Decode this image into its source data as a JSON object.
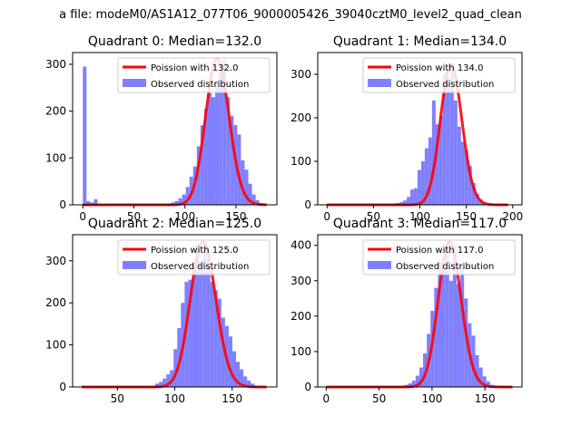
{
  "figure": {
    "title": "a file: modeM0/AS1A12_077T06_9000005426_39040cztM0_level2_quad_clean"
  },
  "colors": {
    "fit_line": "#ff0000",
    "hist_fill": "#8080ff",
    "legend_border": "#cccccc"
  },
  "chart_data": [
    {
      "type": "bar",
      "title": "Quadrant 0: Median=132.0",
      "xlim": [
        -10,
        190
      ],
      "ylim": [
        0,
        325
      ],
      "xticks": [
        0,
        50,
        100,
        150
      ],
      "yticks": [
        0,
        100,
        200,
        300
      ],
      "legend_position": "upper right",
      "fit": {
        "label": "Poission with 132.0",
        "mean": 132.0,
        "x_range": [
          0,
          180
        ],
        "peak": 312
      },
      "hist": {
        "label": "Observed distribution",
        "bin_edges": [
          0,
          3.6,
          7.2,
          10.8,
          14.4,
          18,
          21.6,
          25.2,
          28.8,
          32.4,
          36,
          39.6,
          43.2,
          46.8,
          50.4,
          54,
          57.6,
          61.2,
          64.8,
          68.4,
          72,
          75.6,
          79.2,
          82.8,
          86.4,
          90,
          93.6,
          97.2,
          100.8,
          104.4,
          108,
          111.6,
          115.2,
          118.8,
          122.4,
          126,
          129.6,
          133.2,
          136.8,
          140.4,
          144,
          147.6,
          151.2,
          154.8,
          158.4,
          162,
          165.6,
          169.2,
          172.8,
          176.4,
          180
        ],
        "counts": [
          295,
          8,
          5,
          12,
          2,
          1,
          0,
          1,
          0,
          1,
          0,
          1,
          0,
          0,
          0,
          0,
          0,
          0,
          0,
          0,
          2,
          0,
          1,
          3,
          5,
          8,
          14,
          22,
          38,
          60,
          82,
          125,
          170,
          205,
          240,
          230,
          265,
          285,
          310,
          230,
          190,
          170,
          150,
          95,
          75,
          45,
          22,
          10,
          4,
          2
        ]
      }
    },
    {
      "type": "bar",
      "title": "Quadrant 1: Median=134.0",
      "xlim": [
        -10,
        210
      ],
      "ylim": [
        0,
        350
      ],
      "xticks": [
        0,
        50,
        100,
        150,
        200
      ],
      "yticks": [
        0,
        100,
        200,
        300
      ],
      "legend_position": "upper right",
      "fit": {
        "label": "Poission with 134.0",
        "mean": 134.0,
        "x_range": [
          0,
          195
        ],
        "peak": 322
      },
      "hist": {
        "label": "Observed distribution",
        "bin_edges": [
          0,
          3.9,
          7.8,
          11.7,
          15.6,
          19.5,
          23.4,
          27.3,
          31.2,
          35.1,
          39,
          42.9,
          46.8,
          50.7,
          54.6,
          58.5,
          62.4,
          66.3,
          70.2,
          74.1,
          78,
          81.9,
          85.8,
          89.7,
          93.6,
          97.5,
          101.4,
          105.3,
          109.2,
          113.1,
          117,
          120.9,
          124.8,
          128.7,
          132.6,
          136.5,
          140.4,
          144.3,
          148.2,
          152.1,
          156,
          159.9,
          163.8,
          167.7,
          171.6,
          175.5,
          179.4,
          183.3,
          187.2,
          191.1,
          195
        ],
        "counts": [
          2,
          0,
          0,
          0,
          1,
          0,
          0,
          0,
          0,
          0,
          0,
          1,
          0,
          0,
          0,
          0,
          0,
          2,
          0,
          4,
          6,
          10,
          18,
          35,
          38,
          80,
          100,
          130,
          155,
          240,
          185,
          205,
          300,
          290,
          320,
          240,
          180,
          145,
          125,
          90,
          50,
          25,
          12,
          5,
          3,
          1,
          0,
          0,
          0,
          0
        ]
      }
    },
    {
      "type": "bar",
      "title": "Quadrant 2: Median=125.0",
      "xlim": [
        11,
        189
      ],
      "ylim": [
        0,
        362
      ],
      "xticks": [
        50,
        100,
        150
      ],
      "yticks": [
        0,
        100,
        200,
        300
      ],
      "legend_position": "upper right",
      "fit": {
        "label": "Poission with 125.0",
        "mean": 125.0,
        "x_range": [
          19,
          180
        ],
        "peak": 345
      },
      "hist": {
        "label": "Observed distribution",
        "bin_edges": [
          19,
          22.2,
          25.4,
          28.6,
          31.8,
          35,
          38.2,
          41.4,
          44.6,
          47.8,
          51,
          54.2,
          57.4,
          60.6,
          63.8,
          67,
          70.2,
          73.4,
          76.6,
          79.8,
          83,
          86.2,
          89.4,
          92.6,
          95.8,
          99,
          102.2,
          105.4,
          108.6,
          111.8,
          115,
          118.2,
          121.4,
          124.6,
          127.8,
          131,
          134.2,
          137.4,
          140.6,
          143.8,
          147,
          150.2,
          153.4,
          156.6,
          159.8,
          163,
          166.2,
          169.4,
          172.6,
          175.8,
          180
        ],
        "counts": [
          0,
          0,
          0,
          0,
          0,
          0,
          0,
          0,
          0,
          0,
          0,
          0,
          0,
          0,
          0,
          0,
          0,
          0,
          1,
          3,
          8,
          12,
          20,
          30,
          40,
          90,
          140,
          200,
          250,
          255,
          295,
          340,
          300,
          320,
          305,
          250,
          230,
          210,
          165,
          145,
          120,
          85,
          60,
          42,
          25,
          15,
          8,
          3,
          1,
          0
        ]
      }
    },
    {
      "type": "bar",
      "title": "Quadrant 3: Median=117.0",
      "xlim": [
        -8,
        185
      ],
      "ylim": [
        0,
        430
      ],
      "xticks": [
        0,
        50,
        100,
        150
      ],
      "yticks": [
        0,
        100,
        200,
        300,
        400
      ],
      "legend_position": "upper right",
      "fit": {
        "label": "Poission with 117.0",
        "mean": 117.0,
        "x_range": [
          0,
          176
        ],
        "peak": 410
      },
      "hist": {
        "label": "Observed distribution",
        "bin_edges": [
          0,
          3.52,
          7.04,
          10.56,
          14.08,
          17.6,
          21.12,
          24.64,
          28.16,
          31.68,
          35.2,
          38.72,
          42.24,
          45.76,
          49.28,
          52.8,
          56.32,
          59.84,
          63.36,
          66.88,
          70.4,
          73.92,
          77.44,
          80.96,
          84.48,
          88,
          91.52,
          95.04,
          98.56,
          102.08,
          105.6,
          109.12,
          112.64,
          116.16,
          119.68,
          123.2,
          126.72,
          130.24,
          133.76,
          137.28,
          140.8,
          144.32,
          147.84,
          151.36,
          154.88,
          158.4,
          161.92,
          165.44,
          168.96,
          172.48,
          176
        ],
        "counts": [
          0,
          0,
          0,
          0,
          0,
          0,
          0,
          0,
          0,
          0,
          0,
          0,
          0,
          0,
          0,
          0,
          0,
          0,
          0,
          1,
          3,
          6,
          10,
          18,
          32,
          55,
          95,
          150,
          215,
          280,
          355,
          330,
          410,
          300,
          400,
          290,
          345,
          250,
          180,
          145,
          90,
          55,
          30,
          15,
          6,
          2,
          1,
          0,
          0,
          0
        ]
      }
    }
  ]
}
